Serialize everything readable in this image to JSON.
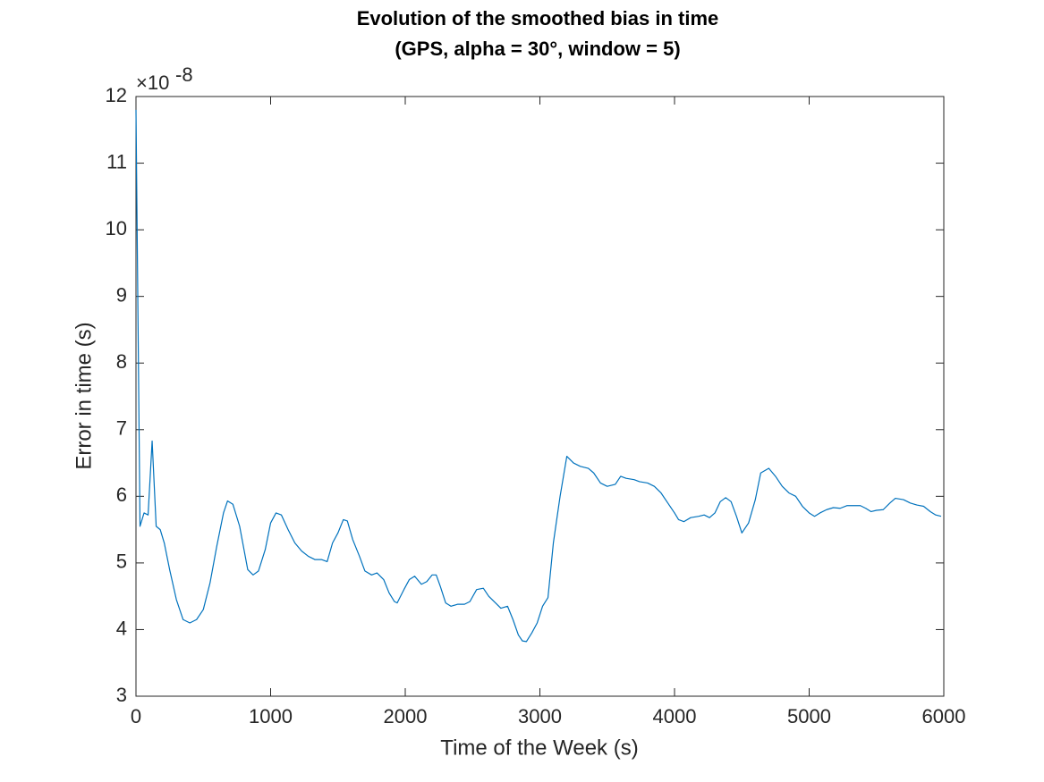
{
  "chart_data": {
    "type": "line",
    "title": "Evolution of the smoothed bias in time",
    "subtitle": "(GPS, alpha = 30°, window = 5)",
    "x_label": "Time of the Week (s)",
    "y_label": "Error in time (s)",
    "y_multiplier": "×10",
    "y_multiplier_exponent": "-8",
    "xlim": [
      0,
      6000
    ],
    "xticks": [
      0,
      1000,
      2000,
      3000,
      4000,
      5000,
      6000
    ],
    "ylim": [
      3,
      12
    ],
    "yticks": [
      3,
      4,
      5,
      6,
      7,
      8,
      9,
      10,
      11,
      12
    ],
    "grid": false,
    "box": true,
    "x": [
      0,
      30,
      60,
      90,
      120,
      150,
      180,
      210,
      250,
      300,
      350,
      400,
      450,
      500,
      550,
      600,
      650,
      680,
      720,
      770,
      830,
      870,
      910,
      960,
      1000,
      1040,
      1080,
      1130,
      1180,
      1230,
      1280,
      1330,
      1380,
      1420,
      1460,
      1500,
      1540,
      1570,
      1610,
      1660,
      1700,
      1750,
      1790,
      1840,
      1880,
      1920,
      1940,
      1990,
      2030,
      2070,
      2120,
      2160,
      2200,
      2230,
      2260,
      2300,
      2340,
      2390,
      2440,
      2480,
      2530,
      2580,
      2620,
      2680,
      2710,
      2760,
      2800,
      2840,
      2870,
      2900,
      2940,
      2980,
      3020,
      3060,
      3100,
      3150,
      3200,
      3250,
      3300,
      3360,
      3400,
      3450,
      3500,
      3560,
      3600,
      3640,
      3700,
      3740,
      3800,
      3850,
      3900,
      3950,
      4000,
      4030,
      4070,
      4120,
      4180,
      4220,
      4260,
      4300,
      4340,
      4380,
      4420,
      4460,
      4500,
      4550,
      4600,
      4640,
      4700,
      4750,
      4800,
      4850,
      4900,
      4950,
      5000,
      5040,
      5080,
      5130,
      5180,
      5230,
      5280,
      5330,
      5380,
      5420,
      5460,
      5500,
      5550,
      5600,
      5640,
      5700,
      5750,
      5800,
      5850,
      5900,
      5940,
      5980
    ],
    "series": [
      {
        "color": "#0072bd",
        "values": [
          11.8,
          5.55,
          5.75,
          5.72,
          6.83,
          5.55,
          5.5,
          5.3,
          4.9,
          4.45,
          4.15,
          4.1,
          4.15,
          4.3,
          4.7,
          5.25,
          5.75,
          5.93,
          5.88,
          5.55,
          4.9,
          4.82,
          4.88,
          5.2,
          5.6,
          5.75,
          5.72,
          5.5,
          5.3,
          5.18,
          5.1,
          5.05,
          5.05,
          5.02,
          5.3,
          5.45,
          5.65,
          5.63,
          5.35,
          5.1,
          4.88,
          4.82,
          4.85,
          4.75,
          4.55,
          4.42,
          4.4,
          4.6,
          4.75,
          4.8,
          4.68,
          4.72,
          4.82,
          4.82,
          4.65,
          4.4,
          4.35,
          4.38,
          4.38,
          4.42,
          4.6,
          4.62,
          4.5,
          4.38,
          4.32,
          4.35,
          4.15,
          3.92,
          3.83,
          3.82,
          3.95,
          4.1,
          4.35,
          4.48,
          5.3,
          6.0,
          6.6,
          6.5,
          6.45,
          6.42,
          6.35,
          6.2,
          6.15,
          6.18,
          6.3,
          6.27,
          6.25,
          6.22,
          6.2,
          6.15,
          6.05,
          5.9,
          5.75,
          5.65,
          5.62,
          5.68,
          5.7,
          5.72,
          5.68,
          5.75,
          5.92,
          5.98,
          5.92,
          5.7,
          5.45,
          5.6,
          5.95,
          6.35,
          6.42,
          6.3,
          6.15,
          6.05,
          6.0,
          5.85,
          5.75,
          5.7,
          5.75,
          5.8,
          5.83,
          5.82,
          5.86,
          5.86,
          5.86,
          5.82,
          5.77,
          5.79,
          5.8,
          5.9,
          5.97,
          5.95,
          5.9,
          5.87,
          5.85,
          5.77,
          5.72,
          5.7
        ]
      }
    ]
  }
}
